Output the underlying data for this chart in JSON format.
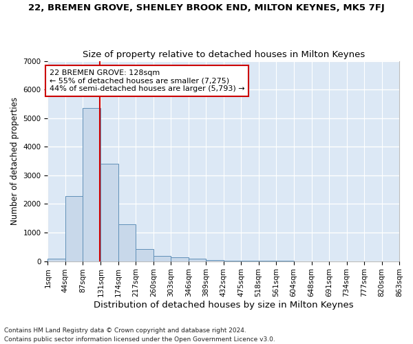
{
  "title": "22, BREMEN GROVE, SHENLEY BROOK END, MILTON KEYNES, MK5 7FJ",
  "subtitle": "Size of property relative to detached houses in Milton Keynes",
  "xlabel": "Distribution of detached houses by size in Milton Keynes",
  "ylabel": "Number of detached properties",
  "bar_color": "#c8d8ea",
  "bar_edge_color": "#6090b8",
  "bg_color": "#dce8f5",
  "fig_bg_color": "#ffffff",
  "grid_color": "#ffffff",
  "annotation_line_color": "#cc0000",
  "annotation_box_color": "#cc0000",
  "annotation_text": "22 BREMEN GROVE: 128sqm\n← 55% of detached houses are smaller (7,275)\n44% of semi-detached houses are larger (5,793) →",
  "property_size": 128,
  "bin_edges": [
    1,
    44,
    87,
    131,
    174,
    217,
    260,
    303,
    346,
    389,
    432,
    475,
    518,
    561,
    604,
    648,
    691,
    734,
    777,
    820,
    863
  ],
  "bar_heights": [
    75,
    2270,
    5350,
    3400,
    1280,
    420,
    175,
    140,
    80,
    40,
    20,
    10,
    5,
    3,
    2,
    1,
    1,
    0,
    0,
    0
  ],
  "ylim": [
    0,
    7000
  ],
  "yticks": [
    0,
    1000,
    2000,
    3000,
    4000,
    5000,
    6000,
    7000
  ],
  "footnote": "Contains HM Land Registry data © Crown copyright and database right 2024.\nContains public sector information licensed under the Open Government Licence v3.0.",
  "title_fontsize": 9.5,
  "subtitle_fontsize": 9.5,
  "xlabel_fontsize": 9.5,
  "ylabel_fontsize": 8.5,
  "tick_fontsize": 7.5,
  "annot_fontsize": 8,
  "footnote_fontsize": 6.5
}
